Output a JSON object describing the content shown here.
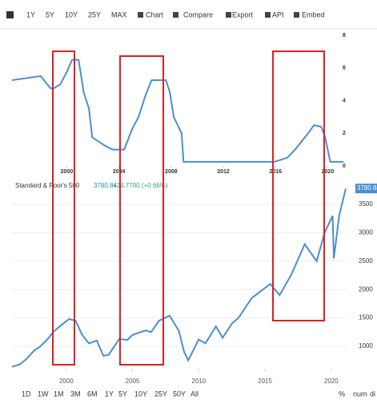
{
  "toolbar": [
    "1Y",
    "5Y",
    "10Y",
    "25Y",
    "MAX",
    "Chart",
    "Compare",
    "Export",
    "API",
    "Embed"
  ],
  "chart_data": [
    {
      "type": "line",
      "color": "#4a8fd0",
      "x": [
        1995.8,
        1998.0,
        1998.75,
        1999.0,
        1999.5,
        2000.0,
        2000.4,
        2000.9,
        2001.0,
        2001.3,
        2001.7,
        2001.95,
        2002.9,
        2003.5,
        2004.4,
        2005.0,
        2005.5,
        2006.0,
        2006.5,
        2007.6,
        2007.9,
        2008.2,
        2008.8,
        2008.95,
        2015.9,
        2016.9,
        2017.5,
        2018.0,
        2018.5,
        2018.95,
        2019.5,
        2019.8,
        2020.2,
        2021.2
      ],
      "values": [
        5.25,
        5.5,
        4.75,
        4.75,
        5.0,
        5.75,
        6.5,
        6.5,
        6.0,
        4.5,
        3.5,
        1.75,
        1.25,
        1.0,
        1.0,
        2.25,
        3.0,
        4.25,
        5.25,
        5.25,
        4.5,
        3.0,
        2.0,
        0.25,
        0.25,
        0.5,
        1.0,
        1.5,
        2.0,
        2.5,
        2.4,
        1.75,
        0.25,
        0.25
      ],
      "xlim": [
        1995.8,
        2021.2
      ],
      "ylim": [
        0,
        8
      ],
      "xticks": [
        2000,
        2004,
        2008,
        2012,
        2016,
        2020
      ],
      "yticks": [
        0,
        2,
        4,
        6,
        8
      ],
      "grid": false
    },
    {
      "type": "line",
      "last_value": 3780.84,
      "change": "+24.7700 (+0.66%)",
      "x": [
        1995.9,
        1996.5,
        1997.0,
        1997.6,
        1998.0,
        1998.6,
        1999.0,
        1999.5,
        2000.2,
        2000.7,
        2001.2,
        2001.7,
        2002.3,
        2002.8,
        2003.2,
        2004.0,
        2004.6,
        2005.0,
        2006.0,
        2006.4,
        2007.0,
        2007.8,
        2008.5,
        2008.9,
        2009.2,
        2010.0,
        2010.5,
        2011.3,
        2011.8,
        2012.5,
        2013.0,
        2014.0,
        2015.4,
        2016.1,
        2017.0,
        2018.0,
        2018.9,
        2019.5,
        2020.1,
        2020.2,
        2020.6,
        2021.1
      ],
      "series": [
        {
          "name": "Standard & Poor's 500",
          "color": "#4a8fd0",
          "values": [
            640,
            680,
            780,
            930,
            990,
            1130,
            1250,
            1350,
            1480,
            1450,
            1200,
            1050,
            1100,
            830,
            850,
            1130,
            1110,
            1200,
            1280,
            1250,
            1450,
            1540,
            1270,
            900,
            750,
            1120,
            1050,
            1350,
            1150,
            1400,
            1500,
            1850,
            2100,
            1900,
            2270,
            2800,
            2500,
            3000,
            3300,
            2550,
            3300,
            3780.84
          ]
        }
      ],
      "xlim": [
        1995.9,
        2021.1
      ],
      "ylim": [
        600,
        3900
      ],
      "xticks": [
        2000,
        2005,
        2010,
        2015,
        2020
      ],
      "yticks": [
        1000,
        1500,
        2000,
        2500,
        3000,
        3500
      ],
      "grid": true
    }
  ],
  "ranges": [
    "1D",
    "1W",
    "1M",
    "3M",
    "6M",
    "1Y",
    "5Y",
    "10Y",
    "25Y",
    "50Y",
    "All"
  ],
  "right_controls": [
    "%",
    "num",
    "di"
  ]
}
